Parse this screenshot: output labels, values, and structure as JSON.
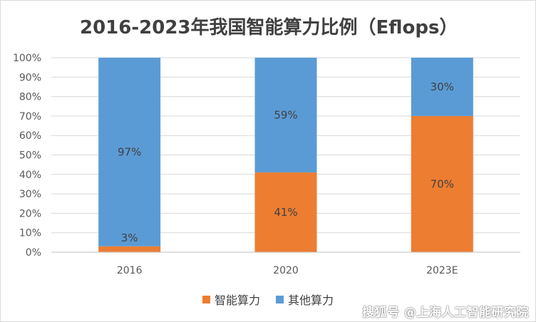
{
  "chart_data": {
    "type": "bar",
    "stacked": true,
    "title": "2016-2023年我国智能算力比例（Eflops）",
    "categories": [
      "2016",
      "2020",
      "2023E"
    ],
    "series": [
      {
        "name": "智能算力",
        "values": [
          3,
          41,
          70
        ],
        "labels": [
          "3%",
          "41%",
          "70%"
        ],
        "color": "#ED7D31"
      },
      {
        "name": "其他算力",
        "values": [
          97,
          59,
          30
        ],
        "labels": [
          "97%",
          "59%",
          "30%"
        ],
        "color": "#5B9BD5"
      }
    ],
    "yticks": [
      "0%",
      "10%",
      "20%",
      "30%",
      "40%",
      "50%",
      "60%",
      "70%",
      "80%",
      "90%",
      "100%"
    ],
    "ylim": [
      0,
      100
    ],
    "grid": true,
    "legend_position": "bottom"
  },
  "watermark": "搜狐号 @上海人工智能研究院"
}
